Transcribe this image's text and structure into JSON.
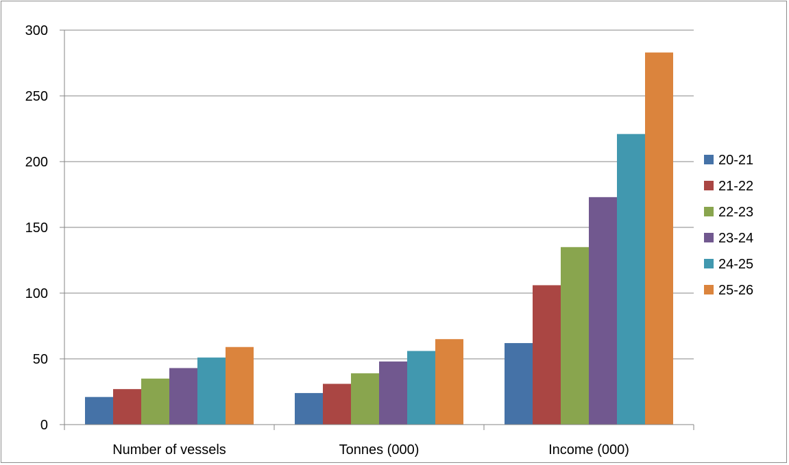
{
  "chart_data": {
    "type": "bar",
    "title": "",
    "xlabel": "",
    "ylabel": "",
    "ylim": [
      0,
      300
    ],
    "yticks": [
      0,
      50,
      100,
      150,
      200,
      250,
      300
    ],
    "grid": true,
    "legend_position": "right",
    "categories": [
      "Number of vessels",
      "Tonnes (000)",
      "Income (000)"
    ],
    "series": [
      {
        "name": "20-21",
        "color": "#4572a7",
        "values": [
          21,
          24,
          62
        ]
      },
      {
        "name": "21-22",
        "color": "#aa4643",
        "values": [
          27,
          31,
          106
        ]
      },
      {
        "name": "22-23",
        "color": "#89a54e",
        "values": [
          35,
          39,
          135
        ]
      },
      {
        "name": "23-24",
        "color": "#71588f",
        "values": [
          43,
          48,
          173
        ]
      },
      {
        "name": "24-25",
        "color": "#4198af",
        "values": [
          51,
          56,
          221
        ]
      },
      {
        "name": "25-26",
        "color": "#db843d",
        "values": [
          59,
          65,
          283
        ]
      }
    ]
  }
}
